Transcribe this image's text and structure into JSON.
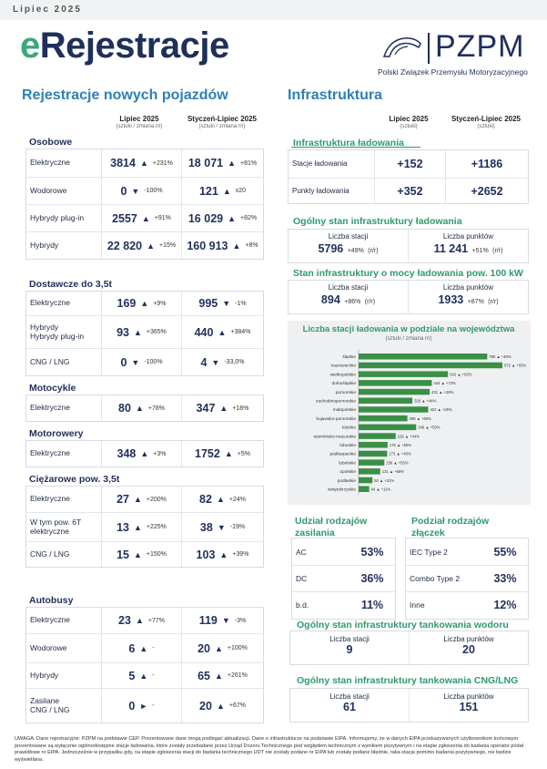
{
  "header": {
    "month": "Lipiec 2025",
    "title_e": "e",
    "title_rest": "Rejestracje",
    "logo": "PZPM",
    "logo_sub": "Polski Związek Przemysłu Motoryzacyjnego"
  },
  "reg": {
    "title": "Rejestracje nowych pojazdów",
    "col1": "Lipiec 2025",
    "col1_sub": "(sztuki / zmiana r/r)",
    "col2": "Styczeń-Lipiec 2025",
    "col2_sub": "(sztuki / zmiana r/r)",
    "osobowe": {
      "cat": "Osobowe",
      "rows": [
        {
          "label": "Elektryczne",
          "v1": "3814",
          "a1": "▲",
          "c1": "+231%",
          "v2": "18 071",
          "a2": "▲",
          "c2": "+81%"
        },
        {
          "label": "Wodorowe",
          "v1": "0",
          "a1": "▼",
          "c1": "-100%",
          "v2": "121",
          "a2": "▲",
          "c2": "x20"
        },
        {
          "label": "Hybrydy plug-in",
          "v1": "2557",
          "a1": "▲",
          "c1": "+91%",
          "v2": "16 029",
          "a2": "▲",
          "c2": "+82%"
        },
        {
          "label": "Hybrydy",
          "v1": "22 820",
          "a1": "▲",
          "c1": "+15%",
          "v2": "160 913",
          "a2": "▲",
          "c2": "+8%"
        }
      ]
    },
    "dostawcze": {
      "cat": "Dostawcze do 3,5t",
      "rows": [
        {
          "label": "Elektryczne",
          "v1": "169",
          "a1": "▲",
          "c1": "+9%",
          "v2": "995",
          "a2": "▼",
          "c2": "-1%"
        },
        {
          "label": "Hybrydy\nHybrydy plug-in",
          "v1": "93",
          "a1": "▲",
          "c1": "+365%",
          "v2": "440",
          "a2": "▲",
          "c2": "+384%"
        },
        {
          "label": "CNG / LNG",
          "v1": "0",
          "a1": "▼",
          "c1": "-100%",
          "v2": "4",
          "a2": "▼",
          "c2": "-33,0%"
        }
      ]
    },
    "motocykle": {
      "cat": "Motocykle",
      "rows": [
        {
          "label": "Elektryczne",
          "v1": "80",
          "a1": "▲",
          "c1": "+78%",
          "v2": "347",
          "a2": "▲",
          "c2": "+18%"
        }
      ]
    },
    "motorowery": {
      "cat": "Motorowery",
      "rows": [
        {
          "label": "Elektryczne",
          "v1": "348",
          "a1": "▲",
          "c1": "+3%",
          "v2": "1752",
          "a2": "▲",
          "c2": "+5%"
        }
      ]
    },
    "ciezarowe": {
      "cat": "Ciężarowe pow. 3,5t",
      "rows": [
        {
          "label": "Elektryczne",
          "v1": "27",
          "a1": "▲",
          "c1": "+200%",
          "v2": "82",
          "a2": "▲",
          "c2": "+24%"
        },
        {
          "label": "W tym pow. 6T\nelektryczne",
          "v1": "13",
          "a1": "▲",
          "c1": "+225%",
          "v2": "38",
          "a2": "▼",
          "c2": "-19%"
        },
        {
          "label": "CNG / LNG",
          "v1": "15",
          "a1": "▲",
          "c1": "+150%",
          "v2": "103",
          "a2": "▲",
          "c2": "+39%"
        }
      ]
    },
    "autobusy": {
      "cat": "Autobusy",
      "rows": [
        {
          "label": "Elektryczne",
          "v1": "23",
          "a1": "▲",
          "c1": "+77%",
          "v2": "119",
          "a2": "▼",
          "c2": "-3%"
        },
        {
          "label": "Wodorowe",
          "v1": "6",
          "a1": "▲",
          "c1": "-",
          "v2": "20",
          "a2": "▲",
          "c2": "+100%"
        },
        {
          "label": "Hybrydy",
          "v1": "5",
          "a1": "▲",
          "c1": "-",
          "v2": "65",
          "a2": "▲",
          "c2": "+261%"
        },
        {
          "label": "Zasilane\nCNG / LNG",
          "v1": "0",
          "a1": "►",
          "c1": "-",
          "v2": "20",
          "a2": "▲",
          "c2": "+67%"
        }
      ]
    }
  },
  "infra": {
    "title": "Infrastruktura",
    "col1": "Lipiec 2025",
    "col1_sub": "(sztuki)",
    "col2": "Styczeń-Lipiec 2025",
    "col2_sub": "(sztuki)",
    "lad_title": "Infrastruktura  ładowania",
    "lad_rows": [
      {
        "label": "Stacje ładowania",
        "v1": "+152",
        "v2": "+1186"
      },
      {
        "label": "Punkty ładowania",
        "v1": "+352",
        "v2": "+2652"
      }
    ],
    "ogolny_title": "Ogólny stan infrastruktury ładowania",
    "ogolny": {
      "l1": "Liczba stacji",
      "v1": "5796",
      "c1": "+49%",
      "l2": "Liczba punktów",
      "v2": "11 241",
      "c2": "+51%",
      "rr": "(r/r)"
    },
    "moc_title": "Stan infrastruktury o mocy ładowania pow. 100 kW",
    "moc": {
      "l1": "Liczba stacji",
      "v1": "894",
      "c1": "+86%",
      "l2": "Liczba punktów",
      "v2": "1933",
      "c2": "+87%",
      "rr": "(r/r)"
    },
    "zasil_title": "Udział rodzajów zasilania",
    "zasil": [
      {
        "label": "AC",
        "value": "53%"
      },
      {
        "label": "DC",
        "value": "36%"
      },
      {
        "label": "b.d.",
        "value": "11%"
      }
    ],
    "zlacz_title": "Podział rodzajów złączek",
    "zlacz": [
      {
        "label": "IEC Type 2",
        "value": "55%"
      },
      {
        "label": "Combo Type 2",
        "value": "33%"
      },
      {
        "label": "Inne",
        "value": "12%"
      }
    ],
    "wodor_title": "Ogólny stan infrastruktury tankowania wodoru",
    "wodor": {
      "l1": "Liczba stacji",
      "v1": "9",
      "l2": "Liczba punktów",
      "v2": "20"
    },
    "cng_title": "Ogólny stan infrastruktury tankowania CNG/LNG",
    "cng": {
      "l1": "Liczba stacji",
      "v1": "61",
      "l2": "Liczba punktów",
      "v2": "151"
    }
  },
  "chart_data": {
    "type": "bar",
    "title": "Liczba stacji ładowania w podziale na województwa",
    "subtitle": "(sztuki / zmiana r/r)",
    "categories": [
      "śląskie",
      "mazowieckie",
      "wielkopolskie",
      "dolnośląskie",
      "pomorskie",
      "zachodniopomorskie",
      "małopolskie",
      "kujawsko-pomorskie",
      "łódzkie",
      "warmińsko-mazurskie",
      "lubuskie",
      "podkarpackie",
      "lubelskie",
      "opolskie",
      "podlaskie",
      "świętokrzyskie"
    ],
    "values": [
      780,
      872,
      542,
      444,
      431,
      326,
      422,
      296,
      349,
      225,
      176,
      173,
      156,
      131,
      84,
      64
    ],
    "labels": [
      "780 ▲ +40%",
      "872 ▲ +55%",
      "542 ▲ +63%",
      "444 ▲ +73%",
      "431 ▲ +28%",
      "326 ▲ +44%",
      "422 ▲ +26%",
      "296 ▲ +60%",
      "349 ▲ +50%",
      "225 ▲ +44%",
      "176 ▲ +65%",
      "173 ▲ +40%",
      "156 ▲ +55%",
      "131 ▲ +68%",
      "84 ▲ +31%",
      "64 ▲ +11%"
    ],
    "color": "#3a8f47"
  },
  "note": "UWAGA: Dane rejestracyjne: PZPM na podstawie CEP. Prezentowane dane mogą podlegać aktualizacji. Dane o infrastrukturze na podstawie EIPA. Informujemy, że w danych EIPA przekazywanych użytkownikom końcowym prezentowane są wyłącznie ogólnodostępne stacje ładowania, które zostały przebadane przez Urząd Dozoru Technicznego pod względem technicznym z wynikiem pozytywnym i na etapie zgłoszenia do badania operator podał prawidłowe nr EIPA. Jednocześnie w przypadku gdy, na etapie zgłoszenia stacji do badania technicznego UDT nie zostały podane nr EIPA lub zostały podane błędnie, taka stacja pomimo badania pozytywnego, nie będzie wyświetlana."
}
